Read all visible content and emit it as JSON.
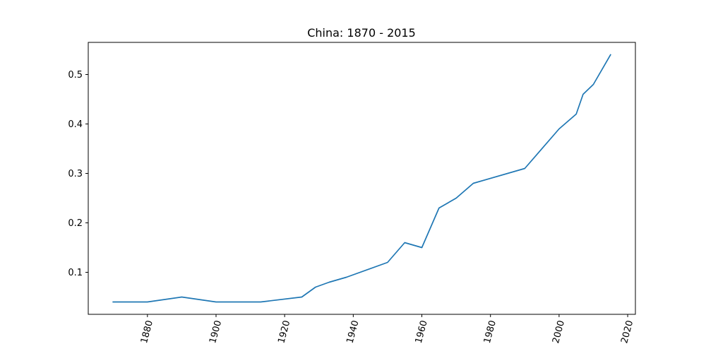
{
  "chart_data": {
    "type": "line",
    "title": "China: 1870 - 2015",
    "xlabel": "",
    "ylabel": "",
    "xlim": [
      1862.75,
      2022.25
    ],
    "ylim": [
      0.015,
      0.565
    ],
    "x_ticks": [
      1880,
      1900,
      1920,
      1940,
      1960,
      1980,
      2000,
      2020
    ],
    "y_ticks": [
      0.1,
      0.2,
      0.3,
      0.4,
      0.5
    ],
    "x_tick_labels": [
      "1880",
      "1900",
      "1920",
      "1940",
      "1960",
      "1980",
      "2000",
      "2020"
    ],
    "y_tick_labels": [
      "0.1",
      "0.2",
      "0.3",
      "0.4",
      "0.5"
    ],
    "x_tick_rotation": "rotated-75-degrees",
    "grid": false,
    "series": [
      {
        "color": "#1f77b4",
        "x": [
          1870,
          1880,
          1890,
          1900,
          1913,
          1925,
          1929,
          1933,
          1938,
          1950,
          1955,
          1960,
          1965,
          1970,
          1975,
          1990,
          2000,
          2005,
          2007,
          2010,
          2015
        ],
        "y": [
          0.04,
          0.04,
          0.05,
          0.04,
          0.04,
          0.05,
          0.07,
          0.08,
          0.09,
          0.12,
          0.16,
          0.15,
          0.23,
          0.25,
          0.28,
          0.31,
          0.39,
          0.42,
          0.46,
          0.48,
          0.54
        ]
      }
    ]
  }
}
